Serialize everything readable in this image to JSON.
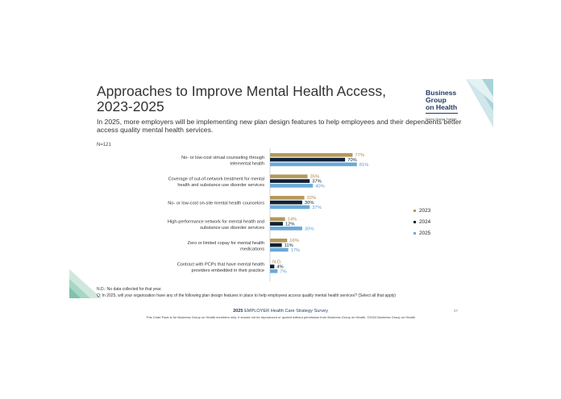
{
  "slide": {
    "title": "Approaches to Improve Mental Health Access, 2023-2025",
    "subtitle": "In 2025, more employers will be implementing new plan design features to help employees and their dependents better access quality mental health services.",
    "sample_size": "N=121",
    "logo": {
      "line1": "Business Group",
      "line2": "on Health",
      "tagline": "Driving Change Together"
    },
    "footnote_nd": "N.D.: No data collected for that year.",
    "footnote_q": "Q: In 2025, will your organization have any of the following plan design features in place to help employees access quality mental health services? (Select all that apply)",
    "survey_bold": "2025",
    "survey_title": "EMPLOYER Health Care Strategy Survey",
    "page_number": "27",
    "disclaimer": "This Chart Pack is for Business Group on Health members only. It should not be reproduced or quoted without permission from Business Group on Health. ©2024 Business Group on Health"
  },
  "colors": {
    "y2023": "#b5985a",
    "y2024": "#0f2136",
    "y2025": "#6aaad8"
  },
  "chart_data": {
    "type": "bar",
    "orientation": "horizontal",
    "categories": [
      [
        "No- or low-cost virtual counseling through",
        "telemental health"
      ],
      [
        "Coverage of out-of-network treatment for mental",
        "health and substance use disorder services"
      ],
      [
        "No- or low-cost on-site mental health counselors"
      ],
      [
        "High-performance network for mental health and",
        "substance use disorder services"
      ],
      [
        "Zero or limited copay for mental health",
        "medications"
      ],
      [
        "Contract with PCPs that have mental health",
        "providers embedded in their practice"
      ]
    ],
    "series": [
      {
        "name": "2023",
        "values": [
          77,
          35,
          32,
          14,
          16,
          null
        ],
        "labels": [
          "77%",
          "35%",
          "32%",
          "14%",
          "16%",
          "N.D."
        ]
      },
      {
        "name": "2024",
        "values": [
          70,
          37,
          30,
          12,
          11,
          4
        ],
        "labels": [
          "70%",
          "37%",
          "30%",
          "12%",
          "11%",
          "4%"
        ]
      },
      {
        "name": "2025",
        "values": [
          81,
          40,
          37,
          30,
          17,
          7
        ],
        "labels": [
          "81%",
          "40%",
          "37%",
          "30%",
          "17%",
          "7%"
        ]
      }
    ],
    "xlim": [
      0,
      100
    ],
    "legend_position": "right"
  }
}
